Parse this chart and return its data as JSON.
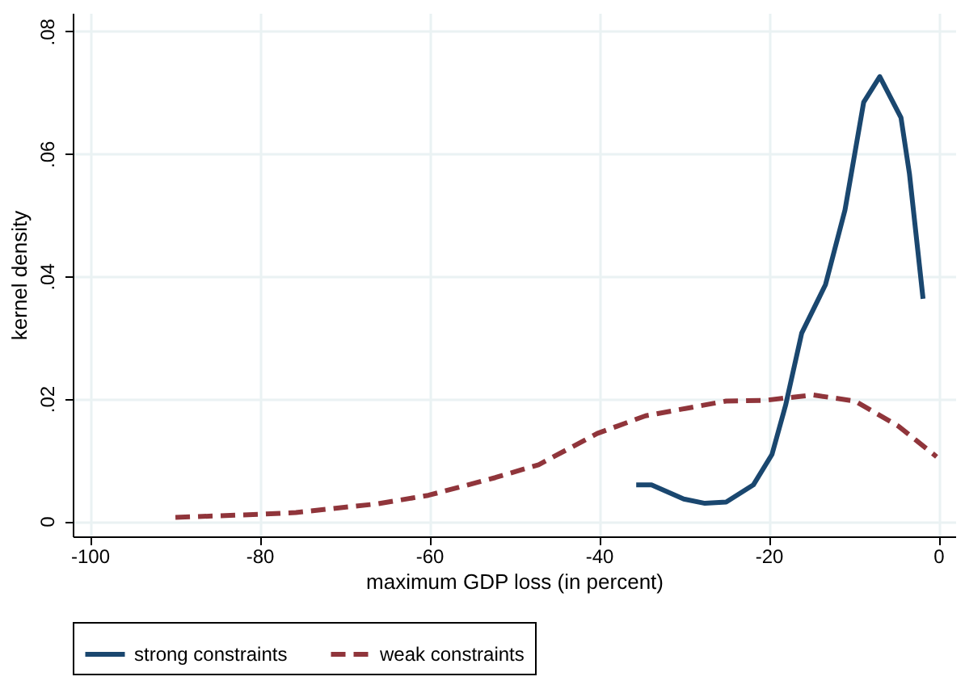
{
  "chart_data": {
    "type": "line",
    "xlabel": "maximum GDP loss (in percent)",
    "ylabel": "kernel density",
    "xlim": [
      -102,
      2
    ],
    "xticks": [
      -100,
      -80,
      -60,
      -40,
      -20,
      0
    ],
    "ylim": [
      -0.0025,
      0.083
    ],
    "yticks": [
      {
        "value": 0,
        "label": "0"
      },
      {
        "value": 0.02,
        "label": ".02"
      },
      {
        "value": 0.04,
        "label": ".04"
      },
      {
        "value": 0.06,
        "label": ".06"
      },
      {
        "value": 0.08,
        "label": ".08"
      }
    ],
    "grid": true,
    "legend": "bottom",
    "series": [
      {
        "name": "strong constraints",
        "color": "#1a476f",
        "line_style": "solid",
        "x": [
          -35.6,
          -33.8,
          -30.0,
          -27.5,
          -25.0,
          -21.8,
          -19.6,
          -18.0,
          -16.1,
          -13.3,
          -11.0,
          -8.8,
          -6.9,
          -4.4,
          -3.4,
          -1.8
        ],
        "values": [
          0.0059,
          0.0059,
          0.0036,
          0.0029,
          0.0031,
          0.0059,
          0.0109,
          0.0189,
          0.0307,
          0.0386,
          0.0508,
          0.0684,
          0.0726,
          0.0659,
          0.0567,
          0.0363
        ]
      },
      {
        "name": "weak constraints",
        "color": "#90353b",
        "line_style": "dashed",
        "x": [
          -89.9,
          -80.1,
          -75.7,
          -66.2,
          -60.1,
          -52.2,
          -47.1,
          -40.2,
          -34.5,
          -25.0,
          -20.5,
          -14.8,
          -9.8,
          -4.7,
          -0.2
        ],
        "values": [
          0.0006,
          0.0011,
          0.0014,
          0.0028,
          0.0042,
          0.0071,
          0.0092,
          0.0143,
          0.0172,
          0.0196,
          0.0197,
          0.0206,
          0.0196,
          0.0155,
          0.0105
        ]
      }
    ]
  }
}
